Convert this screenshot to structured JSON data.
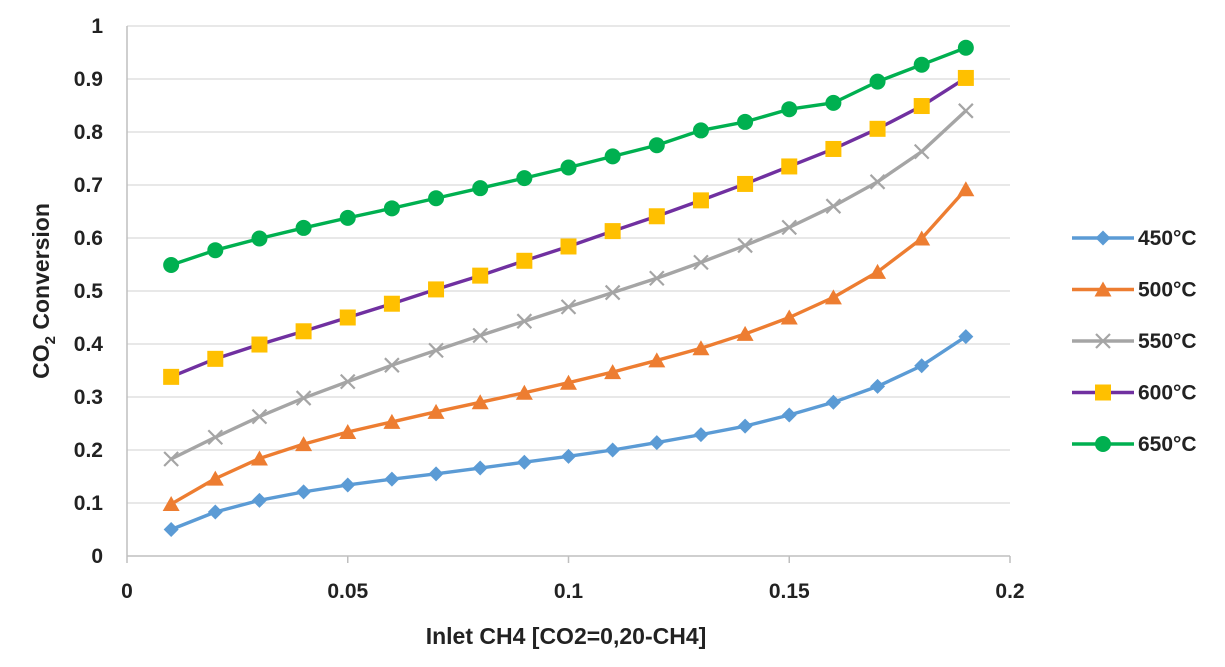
{
  "chart_data": {
    "type": "line",
    "title": "",
    "xlabel": "Inlet CH4 [CO2=0,20-CH4]",
    "ylabel_main": "CO",
    "ylabel_sub": "2",
    "ylabel_rest": " Conversion",
    "xlim": [
      0,
      0.2
    ],
    "ylim": [
      0,
      1
    ],
    "x_ticks": [
      "0",
      "0.05",
      "0.1",
      "0.15",
      "0.2"
    ],
    "x_tick_values": [
      0,
      0.05,
      0.1,
      0.15,
      0.2
    ],
    "y_ticks": [
      "0",
      "0.1",
      "0.2",
      "0.3",
      "0.4",
      "0.5",
      "0.6",
      "0.7",
      "0.8",
      "0.9",
      "1"
    ],
    "y_tick_values": [
      0,
      0.1,
      0.2,
      0.3,
      0.4,
      0.5,
      0.6,
      0.7,
      0.8,
      0.9,
      1
    ],
    "grid": "horizontal",
    "legend_position": "right",
    "x": [
      0.01,
      0.02,
      0.03,
      0.04,
      0.05,
      0.06,
      0.07,
      0.08,
      0.09,
      0.1,
      0.11,
      0.12,
      0.13,
      0.14,
      0.15,
      0.16,
      0.17,
      0.18,
      0.19
    ],
    "series": [
      {
        "name": "450°C",
        "color": "#5B9BD5",
        "marker": "diamond",
        "values": [
          0.05,
          0.083,
          0.105,
          0.121,
          0.134,
          0.145,
          0.155,
          0.166,
          0.177,
          0.188,
          0.2,
          0.214,
          0.229,
          0.245,
          0.266,
          0.29,
          0.32,
          0.359,
          0.414
        ]
      },
      {
        "name": "500°C",
        "color": "#ED7D31",
        "marker": "triangle",
        "values": [
          0.098,
          0.146,
          0.184,
          0.211,
          0.234,
          0.253,
          0.272,
          0.29,
          0.308,
          0.327,
          0.347,
          0.369,
          0.392,
          0.419,
          0.45,
          0.488,
          0.536,
          0.599,
          0.692
        ]
      },
      {
        "name": "550°C",
        "color": "#A5A5A5",
        "marker": "x",
        "values": [
          0.183,
          0.224,
          0.263,
          0.298,
          0.329,
          0.36,
          0.388,
          0.416,
          0.443,
          0.47,
          0.497,
          0.524,
          0.554,
          0.586,
          0.62,
          0.66,
          0.706,
          0.763,
          0.84
        ]
      },
      {
        "name": "600°C",
        "color": "#7030A0",
        "marker": "square",
        "marker_color": "#FFC000",
        "values": [
          0.338,
          0.372,
          0.399,
          0.424,
          0.45,
          0.476,
          0.503,
          0.529,
          0.557,
          0.584,
          0.613,
          0.641,
          0.671,
          0.702,
          0.735,
          0.768,
          0.806,
          0.849,
          0.902
        ]
      },
      {
        "name": "650°C",
        "color": "#00B050",
        "marker": "circle",
        "values": [
          0.549,
          0.577,
          0.599,
          0.619,
          0.638,
          0.656,
          0.675,
          0.694,
          0.713,
          0.733,
          0.754,
          0.775,
          0.803,
          0.819,
          0.843,
          0.855,
          0.895,
          0.927,
          0.959
        ]
      }
    ]
  }
}
